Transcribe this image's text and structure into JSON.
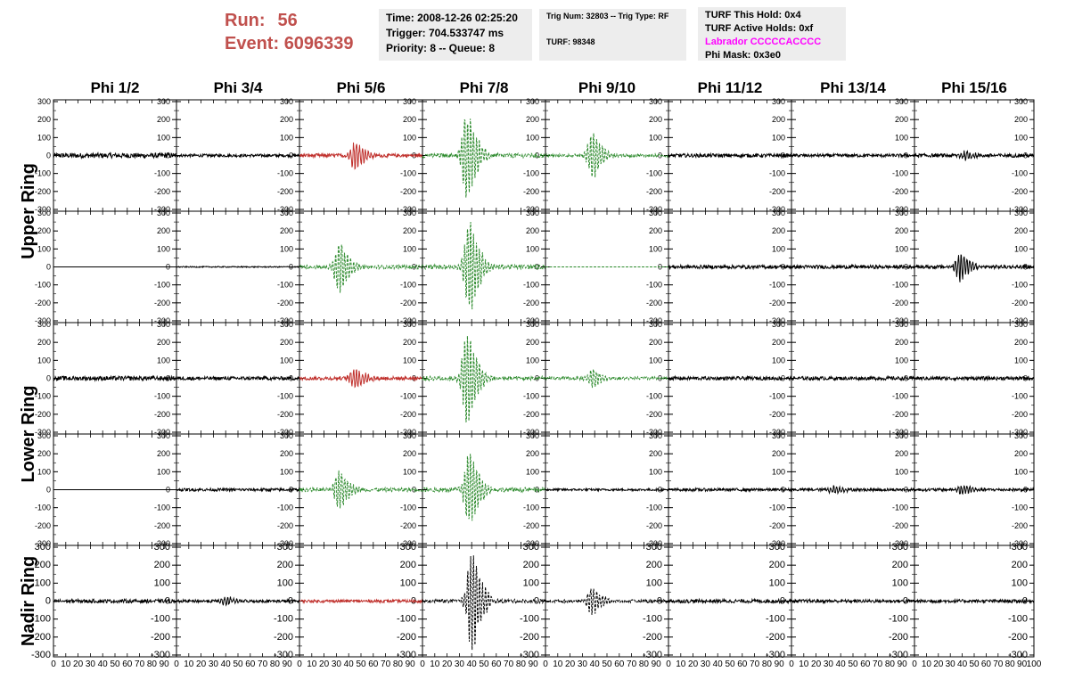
{
  "header": {
    "run_label": "Run:",
    "run_value": "56",
    "event_label": "Event:",
    "event_value": "6096339",
    "time_line": "Time: 2008-12-26 02:25:20",
    "trigger_line": "Trigger: 704.533747 ms",
    "priority_line": "Priority: 8 -- Queue: 8",
    "trig_line": "Trig Num: 32803 -- Trig Type: RF",
    "turf_line": "TURF: 98348",
    "turf_hold": "TURF This Hold: 0x4",
    "turf_active": "TURF Active Holds: 0xf",
    "labrador": "Labrador CCCCCACCCC",
    "phi_mask": "Phi Mask: 0x3e0"
  },
  "colors": {
    "normal": "#000000",
    "masked": "#c0302c",
    "triggered": "#2e8b2e",
    "header_text": "#c0504d",
    "labrador": "#ff00ff"
  },
  "chart_data": {
    "type": "line",
    "columns": [
      "Phi 1/2",
      "Phi 3/4",
      "Phi 5/6",
      "Phi 7/8",
      "Phi 9/10",
      "Phi 11/12",
      "Phi 13/14",
      "Phi 15/16"
    ],
    "rings": [
      "Upper Ring",
      "Lower Ring",
      "Nadir Ring"
    ],
    "ylim": [
      -310,
      310
    ],
    "yticks": [
      -300,
      -200,
      -100,
      0,
      100,
      200,
      300
    ],
    "xlim": [
      0,
      100
    ],
    "xticks": [
      0,
      10,
      20,
      30,
      40,
      50,
      60,
      70,
      80,
      90,
      100
    ],
    "panels": [
      [
        {
          "style": "normal",
          "amp": 14,
          "burst": 0,
          "center": 0
        },
        {
          "style": "normal",
          "amp": 8,
          "burst": 0,
          "center": 0
        },
        {
          "style": "masked",
          "amp": 10,
          "burst": 80,
          "center": 45
        },
        {
          "style": "triggered",
          "amp": 12,
          "burst": 260,
          "center": 36
        },
        {
          "style": "triggered",
          "amp": 8,
          "burst": 130,
          "center": 38
        },
        {
          "style": "normal",
          "amp": 10,
          "burst": 0,
          "center": 0
        },
        {
          "style": "normal",
          "amp": 9,
          "burst": 0,
          "center": 0
        },
        {
          "style": "normal",
          "amp": 10,
          "burst": 20,
          "center": 42
        }
      ],
      [
        {
          "style": "normal",
          "amp": 0,
          "burst": 0,
          "center": 0
        },
        {
          "style": "normal",
          "amp": 3,
          "burst": 0,
          "center": 0
        },
        {
          "style": "triggered",
          "amp": 10,
          "burst": 140,
          "center": 32
        },
        {
          "style": "triggered",
          "amp": 12,
          "burst": 260,
          "center": 38
        },
        {
          "style": "triggered",
          "amp": 0,
          "burst": 0,
          "center": 0
        },
        {
          "style": "normal",
          "amp": 10,
          "burst": 0,
          "center": 0
        },
        {
          "style": "normal",
          "amp": 10,
          "burst": 0,
          "center": 0
        },
        {
          "style": "normal",
          "amp": 10,
          "burst": 80,
          "center": 38
        }
      ],
      [
        {
          "style": "normal",
          "amp": 12,
          "burst": 0,
          "center": 0
        },
        {
          "style": "normal",
          "amp": 10,
          "burst": 0,
          "center": 0
        },
        {
          "style": "masked",
          "amp": 10,
          "burst": 60,
          "center": 45
        },
        {
          "style": "triggered",
          "amp": 12,
          "burst": 260,
          "center": 36
        },
        {
          "style": "triggered",
          "amp": 8,
          "burst": 50,
          "center": 38
        },
        {
          "style": "normal",
          "amp": 10,
          "burst": 0,
          "center": 0
        },
        {
          "style": "normal",
          "amp": 10,
          "burst": 0,
          "center": 0
        },
        {
          "style": "normal",
          "amp": 10,
          "burst": 0,
          "center": 0
        }
      ],
      [
        {
          "style": "normal",
          "amp": 0,
          "burst": 0,
          "center": 0
        },
        {
          "style": "normal",
          "amp": 8,
          "burst": 0,
          "center": 0
        },
        {
          "style": "triggered",
          "amp": 10,
          "burst": 110,
          "center": 32
        },
        {
          "style": "triggered",
          "amp": 12,
          "burst": 220,
          "center": 38
        },
        {
          "style": "normal",
          "amp": 6,
          "burst": 0,
          "center": 0
        },
        {
          "style": "normal",
          "amp": 8,
          "burst": 0,
          "center": 0
        },
        {
          "style": "normal",
          "amp": 8,
          "burst": 20,
          "center": 34
        },
        {
          "style": "normal",
          "amp": 8,
          "burst": 30,
          "center": 40
        }
      ],
      [
        {
          "style": "normal",
          "amp": 10,
          "burst": 0,
          "center": 0
        },
        {
          "style": "normal",
          "amp": 8,
          "burst": 25,
          "center": 40
        },
        {
          "style": "masked",
          "amp": 8,
          "burst": 0,
          "center": 0
        },
        {
          "style": "normal_dashed",
          "amp": 10,
          "burst": 280,
          "center": 40
        },
        {
          "style": "normal_dashed",
          "amp": 8,
          "burst": 80,
          "center": 38
        },
        {
          "style": "normal",
          "amp": 10,
          "burst": 0,
          "center": 0
        },
        {
          "style": "normal",
          "amp": 9,
          "burst": 0,
          "center": 0
        },
        {
          "style": "normal",
          "amp": 9,
          "burst": 0,
          "center": 0
        }
      ]
    ]
  }
}
